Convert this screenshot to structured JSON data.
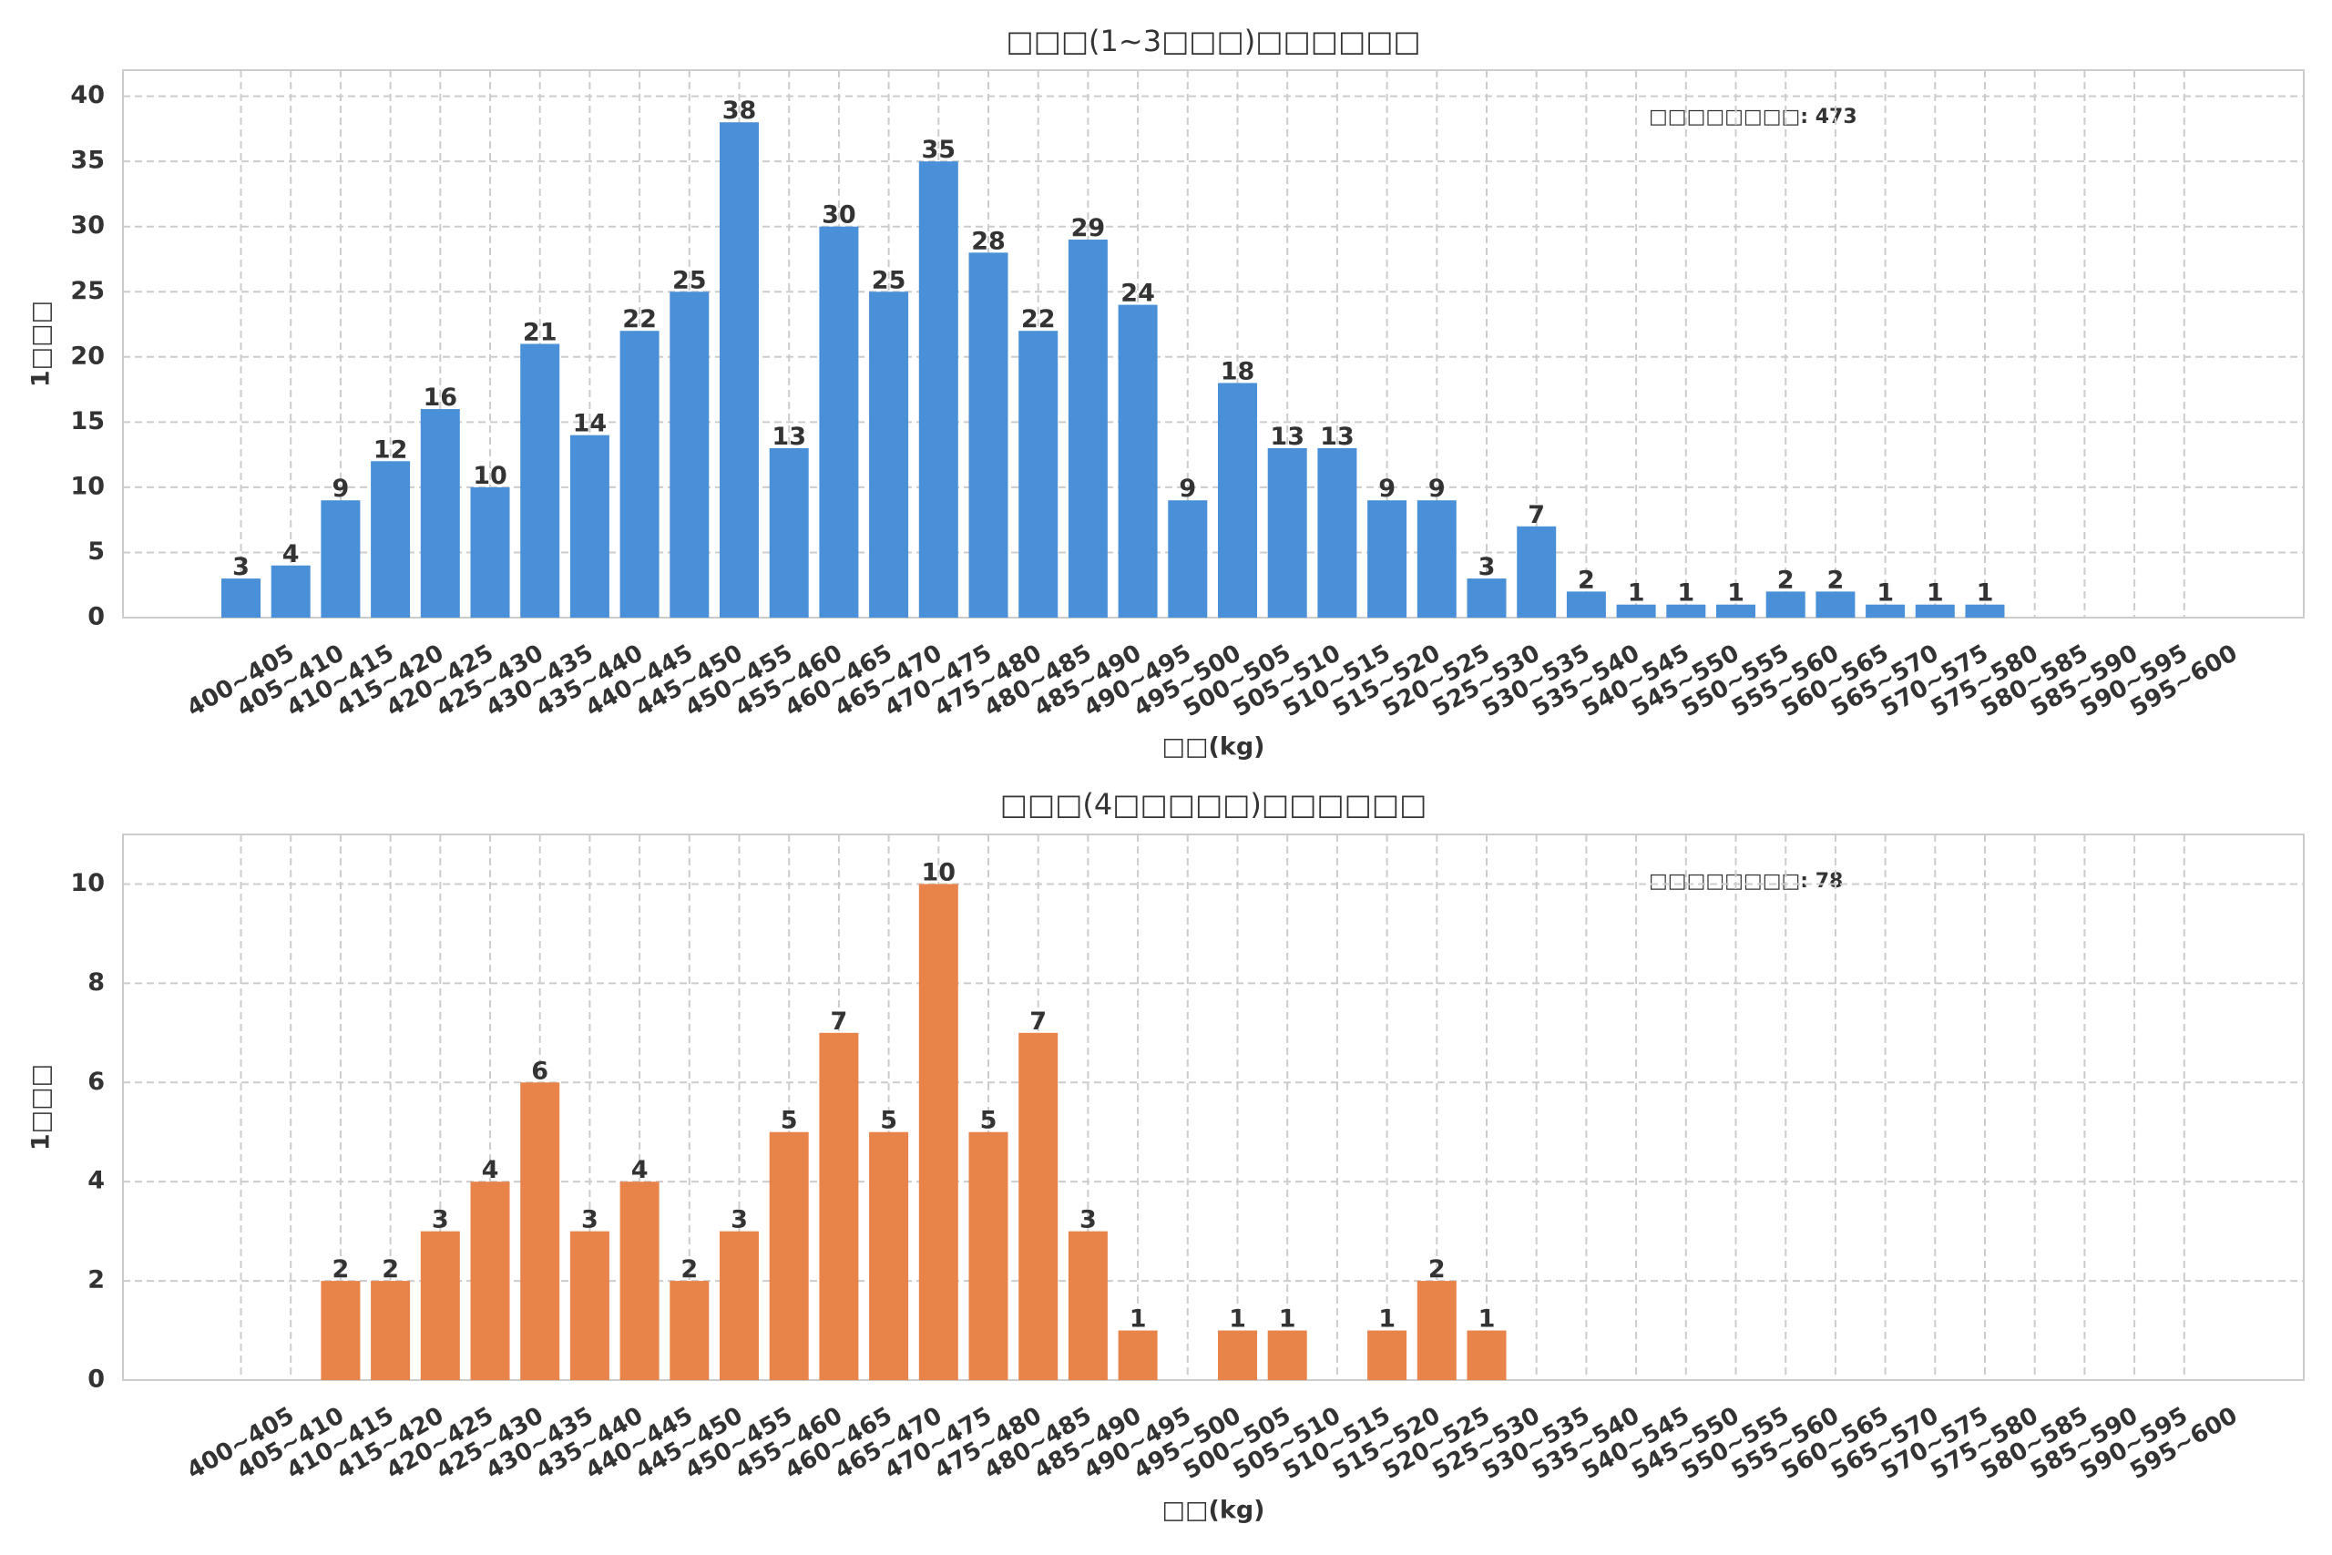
{
  "chart_data": [
    {
      "type": "bar",
      "title": "□□□(1~3□□□)□□□□□□",
      "xlabel": "□□(kg)",
      "ylabel": "1□□□",
      "annotation": "□□□□□□□□: 473",
      "categories": [
        "400~405",
        "405~410",
        "410~415",
        "415~420",
        "420~425",
        "425~430",
        "430~435",
        "435~440",
        "440~445",
        "445~450",
        "450~455",
        "455~460",
        "460~465",
        "465~470",
        "470~475",
        "475~480",
        "480~485",
        "485~490",
        "490~495",
        "495~500",
        "500~505",
        "505~510",
        "510~515",
        "515~520",
        "520~525",
        "525~530",
        "530~535",
        "535~540",
        "540~545",
        "545~550",
        "550~555",
        "555~560",
        "560~565",
        "565~570",
        "570~575",
        "575~580",
        "580~585",
        "585~590",
        "590~595",
        "595~600"
      ],
      "values": [
        3,
        4,
        9,
        12,
        16,
        10,
        21,
        14,
        22,
        25,
        38,
        13,
        30,
        25,
        35,
        28,
        22,
        29,
        24,
        9,
        18,
        13,
        13,
        9,
        9,
        3,
        7,
        2,
        1,
        1,
        1,
        2,
        2,
        1,
        1,
        1,
        0,
        0,
        0,
        0
      ],
      "color": "#4a90d9",
      "ylim": [
        0,
        42
      ],
      "yticks": [
        0,
        5,
        10,
        15,
        20,
        25,
        30,
        35,
        40
      ],
      "grid": true
    },
    {
      "type": "bar",
      "title": "□□□(4□□□□□)□□□□□□",
      "xlabel": "□□(kg)",
      "ylabel": "1□□□",
      "annotation": "□□□□□□□□: 78",
      "categories": [
        "400~405",
        "405~410",
        "410~415",
        "415~420",
        "420~425",
        "425~430",
        "430~435",
        "435~440",
        "440~445",
        "445~450",
        "450~455",
        "455~460",
        "460~465",
        "465~470",
        "470~475",
        "475~480",
        "480~485",
        "485~490",
        "490~495",
        "495~500",
        "500~505",
        "505~510",
        "510~515",
        "515~520",
        "520~525",
        "525~530",
        "530~535",
        "535~540",
        "540~545",
        "545~550",
        "550~555",
        "555~560",
        "560~565",
        "565~570",
        "570~575",
        "575~580",
        "580~585",
        "585~590",
        "590~595",
        "595~600"
      ],
      "values": [
        0,
        0,
        2,
        2,
        3,
        4,
        6,
        3,
        4,
        2,
        3,
        5,
        7,
        5,
        10,
        5,
        7,
        3,
        1,
        0,
        1,
        1,
        0,
        1,
        2,
        1,
        0,
        0,
        0,
        0,
        0,
        0,
        0,
        0,
        0,
        0,
        0,
        0,
        0,
        0
      ],
      "color": "#e8834a",
      "ylim": [
        0,
        11
      ],
      "yticks": [
        0,
        2,
        4,
        6,
        8,
        10
      ],
      "grid": true
    }
  ]
}
